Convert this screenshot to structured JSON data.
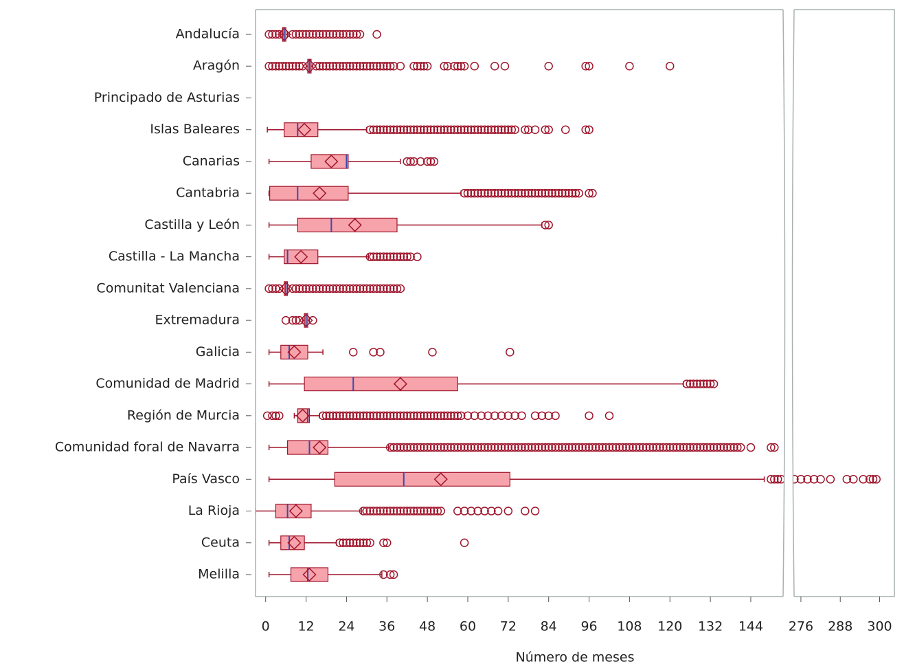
{
  "chart_data": {
    "type": "box",
    "x_label": "Número de meses",
    "xlim": [
      -3,
      154
    ],
    "xlim2": [
      273.5,
      304.5
    ],
    "xticks": [
      0,
      12,
      24,
      36,
      48,
      60,
      72,
      84,
      96,
      108,
      120,
      132,
      144
    ],
    "xticks2": [
      276,
      288,
      300
    ],
    "box_fill": "#f7a3ab",
    "line_color": "#a0162c",
    "median_color": "#3a4bb0",
    "categories": [
      "Andalucía",
      "Aragón",
      "Principado de Asturias",
      "Islas Baleares",
      "Canarias",
      "Cantabria",
      "Castilla y León",
      "Castilla - La Mancha",
      "Comunitat Valenciana",
      "Extremadura",
      "Galicia",
      "Comunidad de Madrid",
      "Región de Murcia",
      "Comunidad foral de Navarra",
      "País Vasco",
      "La Rioja",
      "Ceuta",
      "Melilla"
    ],
    "boxes": [
      {
        "low": 4.5,
        "q1": 5,
        "median": 5.5,
        "q3": 6,
        "high": 6.5,
        "mean": 5.5,
        "outliers": [
          1,
          2,
          3,
          4,
          8,
          9,
          10,
          11,
          12,
          13,
          14,
          15,
          16,
          17,
          18,
          19,
          20,
          21,
          22,
          23,
          24,
          25,
          26,
          27,
          28,
          33
        ]
      },
      {
        "low": 12,
        "q1": 12.5,
        "median": 13,
        "q3": 13.5,
        "high": 14,
        "mean": 13,
        "outliers": [
          1,
          2,
          3,
          4,
          5,
          6,
          7,
          8,
          9,
          10,
          11,
          15,
          16,
          17,
          18,
          19,
          20,
          21,
          22,
          23,
          24,
          25,
          26,
          27,
          28,
          29,
          30,
          31,
          32,
          33,
          34,
          35,
          36,
          37,
          38,
          40,
          44,
          45,
          46,
          47,
          48,
          53,
          54,
          56,
          57,
          58,
          59,
          62,
          68,
          71,
          84,
          95,
          96,
          108,
          120
        ]
      },
      null,
      {
        "low": 0.5,
        "q1": 5.5,
        "median": 9.5,
        "q3": 15.5,
        "high": 30,
        "mean": 11.5,
        "outliers": [
          31,
          32,
          33,
          34,
          35,
          36,
          37,
          38,
          39,
          40,
          41,
          42,
          43,
          44,
          45,
          46,
          47,
          48,
          49,
          50,
          51,
          52,
          53,
          54,
          55,
          56,
          57,
          58,
          59,
          60,
          61,
          62,
          63,
          64,
          65,
          66,
          67,
          68,
          69,
          70,
          71,
          72,
          73,
          74,
          77,
          78,
          80,
          83,
          84,
          89,
          95,
          96
        ]
      },
      {
        "low": 1,
        "q1": 13.5,
        "median": 24,
        "q3": 24.5,
        "high": 40,
        "mean": 19.5,
        "outliers": [
          42,
          43,
          44,
          46,
          48,
          49,
          50
        ]
      },
      {
        "low": 1,
        "q1": 1.2,
        "median": 9.5,
        "q3": 24.5,
        "high": 58,
        "mean": 16,
        "outliers": [
          59,
          60,
          61,
          62,
          63,
          64,
          65,
          66,
          67,
          68,
          69,
          70,
          71,
          72,
          73,
          74,
          75,
          76,
          77,
          78,
          79,
          80,
          81,
          82,
          83,
          84,
          85,
          86,
          87,
          88,
          89,
          90,
          91,
          92,
          93,
          96,
          97
        ]
      },
      {
        "low": 1,
        "q1": 9.5,
        "median": 19.5,
        "q3": 39,
        "high": 82,
        "mean": 26.5,
        "outliers": [
          83,
          84
        ]
      },
      {
        "low": 1,
        "q1": 5.5,
        "median": 6.5,
        "q3": 15.5,
        "high": 30.5,
        "mean": 10.5,
        "outliers": [
          31,
          32,
          33,
          34,
          35,
          36,
          37,
          38,
          39,
          40,
          41,
          42,
          43,
          45
        ]
      },
      {
        "low": 5,
        "q1": 5.5,
        "median": 6,
        "q3": 6.5,
        "high": 7,
        "mean": 6,
        "outliers": [
          1,
          2,
          3,
          4,
          8,
          9,
          10,
          11,
          12,
          13,
          14,
          15,
          16,
          17,
          18,
          19,
          20,
          21,
          22,
          23,
          24,
          25,
          26,
          27,
          28,
          29,
          30,
          31,
          32,
          33,
          34,
          35,
          36,
          37,
          38,
          39,
          40
        ]
      },
      {
        "low": 11,
        "q1": 11.5,
        "median": 12,
        "q3": 12.5,
        "high": 13,
        "mean": 12,
        "outliers": [
          6,
          8,
          9,
          10,
          14
        ]
      },
      {
        "low": 1,
        "q1": 4.5,
        "median": 7,
        "q3": 12.5,
        "high": 17,
        "mean": 8.5,
        "outliers": [
          26,
          32,
          34,
          49.5,
          72.5
        ]
      },
      {
        "low": 1,
        "q1": 11.5,
        "median": 26,
        "q3": 57,
        "high": 124,
        "mean": 40,
        "outliers": [
          125,
          126,
          127,
          128,
          129,
          130,
          131,
          132,
          133
        ]
      },
      {
        "low": 8.5,
        "q1": 9.5,
        "median": 12.5,
        "q3": 13,
        "high": 16,
        "mean": 11,
        "outliers": [
          0.5,
          2,
          3,
          4,
          17,
          18,
          19,
          20,
          21,
          22,
          23,
          24,
          25,
          26,
          27,
          28,
          29,
          30,
          31,
          32,
          33,
          34,
          35,
          36,
          37,
          38,
          39,
          40,
          41,
          42,
          43,
          44,
          45,
          46,
          47,
          48,
          49,
          50,
          51,
          52,
          53,
          54,
          55,
          56,
          57,
          58,
          60,
          62,
          64,
          66,
          68,
          70,
          72,
          74,
          76,
          80,
          82,
          84,
          86,
          96,
          102
        ]
      },
      {
        "low": 1,
        "q1": 6.5,
        "median": 13,
        "q3": 18.5,
        "high": 36.5,
        "mean": 16,
        "outliers": [
          37,
          38,
          39,
          40,
          41,
          42,
          43,
          44,
          45,
          46,
          47,
          48,
          49,
          50,
          51,
          52,
          53,
          54,
          55,
          56,
          57,
          58,
          59,
          60,
          61,
          62,
          63,
          64,
          65,
          66,
          67,
          68,
          69,
          70,
          71,
          72,
          73,
          74,
          75,
          76,
          77,
          78,
          79,
          80,
          81,
          82,
          83,
          84,
          85,
          86,
          87,
          88,
          89,
          90,
          91,
          92,
          93,
          94,
          95,
          96,
          97,
          98,
          99,
          100,
          101,
          102,
          103,
          104,
          105,
          106,
          107,
          108,
          109,
          110,
          111,
          112,
          113,
          114,
          115,
          116,
          117,
          118,
          119,
          120,
          121,
          122,
          123,
          124,
          125,
          126,
          127,
          128,
          129,
          130,
          131,
          132,
          133,
          134,
          135,
          136,
          137,
          138,
          139,
          140,
          141,
          144,
          150,
          151
        ]
      },
      {
        "low": 1,
        "q1": 20.5,
        "median": 41,
        "q3": 72.5,
        "high": 148,
        "mean": 52,
        "outliers": [
          150,
          151,
          152,
          153,
          274,
          276,
          278,
          280,
          282,
          285,
          290,
          292,
          295,
          297,
          298,
          299
        ]
      },
      {
        "low": -3,
        "q1": 3,
        "median": 6.5,
        "q3": 13.5,
        "high": 28.5,
        "mean": 9,
        "outliers": [
          29,
          30,
          31,
          32,
          33,
          34,
          35,
          36,
          37,
          38,
          39,
          40,
          41,
          42,
          43,
          44,
          45,
          46,
          47,
          48,
          49,
          50,
          51,
          52,
          57,
          59,
          61,
          63,
          65,
          67,
          69,
          72,
          77,
          80
        ]
      },
      {
        "low": 1,
        "q1": 4.5,
        "median": 7,
        "q3": 11.5,
        "high": 21,
        "mean": 8.5,
        "outliers": [
          22,
          23,
          24,
          25,
          26,
          27,
          28,
          29,
          30,
          31,
          35,
          36,
          59
        ]
      },
      {
        "low": 1,
        "q1": 7.5,
        "median": 12.5,
        "q3": 18.5,
        "high": 34.5,
        "mean": 13,
        "outliers": [
          35,
          37,
          38
        ]
      }
    ]
  }
}
